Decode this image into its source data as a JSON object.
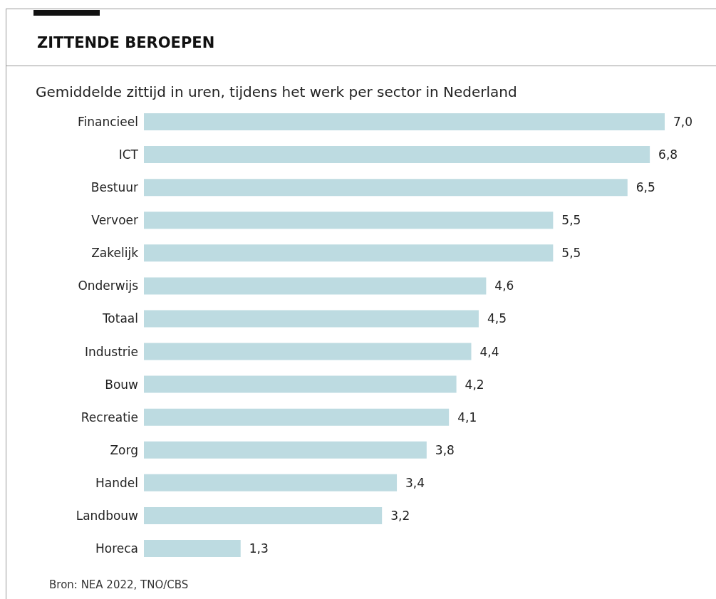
{
  "chart_data": {
    "type": "bar",
    "orientation": "horizontal",
    "title": "ZITTENDE BEROEPEN",
    "subtitle": "Gemiddelde zittijd in uren, tijdens het werk per sector in Nederland",
    "categories": [
      "Financieel",
      "ICT",
      "Bestuur",
      "Vervoer",
      "Zakelijk",
      "Onderwijs",
      "Totaal",
      "Industrie",
      "Bouw",
      "Recreatie",
      "Zorg",
      "Handel",
      "Landbouw",
      "Horeca"
    ],
    "values": [
      7.0,
      6.8,
      6.5,
      5.5,
      5.5,
      4.6,
      4.5,
      4.4,
      4.2,
      4.1,
      3.8,
      3.4,
      3.2,
      1.3
    ],
    "value_labels": [
      "7,0",
      "6,8",
      "6,5",
      "5,5",
      "5,5",
      "4,6",
      "4,5",
      "4,4",
      "4,2",
      "4,1",
      "3,8",
      "3,4",
      "3,2",
      "1,3"
    ],
    "color": "#bddbe1",
    "grid": false,
    "annotations": [
      "Bron: NEA 2022, TNO/CBS"
    ]
  }
}
